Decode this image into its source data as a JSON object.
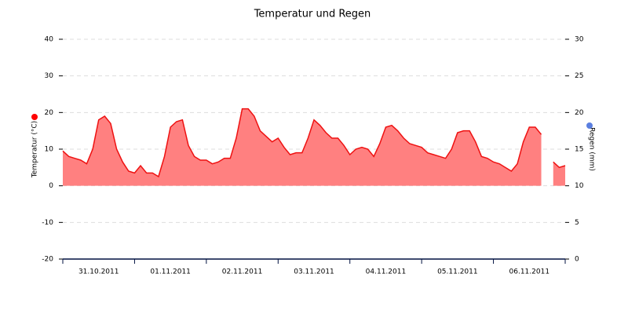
{
  "chart_data": {
    "type": "area",
    "title": "Temperatur und Regen",
    "ylabel": "Temperatur (°C)",
    "ylabel_color": "#ff0000",
    "y2label": "Regen (mm)",
    "y2label_color": "#5b7fe0",
    "categories": [
      null,
      null,
      null,
      null,
      null,
      null,
      "31.10.2011",
      null,
      null,
      null,
      null,
      null,
      null,
      null,
      null,
      null,
      null,
      null,
      "01.11.2011",
      null,
      null,
      null,
      null,
      null,
      null,
      null,
      null,
      null,
      null,
      null,
      "02.11.2011",
      null,
      null,
      null,
      null,
      null,
      null,
      null,
      null,
      null,
      null,
      null,
      "03.11.2011",
      null,
      null,
      null,
      null,
      null,
      null,
      null,
      null,
      null,
      null,
      null,
      "04.11.2011",
      null,
      null,
      null,
      null,
      null,
      null,
      null,
      null,
      null,
      null,
      null,
      "05.11.2011",
      null,
      null,
      null,
      null,
      null,
      null,
      null,
      null,
      null,
      null,
      null,
      "06.11.2011",
      null,
      null,
      null,
      null,
      null,
      null
    ],
    "series": [
      {
        "name": "Temperatur",
        "color": "#ee1111",
        "fill": "#ff8080",
        "values": [
          9.5,
          8,
          7.5,
          7,
          6,
          10,
          18,
          19,
          17,
          10,
          6.5,
          4,
          3.5,
          5.5,
          3.5,
          3.5,
          2.5,
          8,
          16,
          17.5,
          18,
          11,
          8,
          7,
          7,
          6,
          6.5,
          7.5,
          7.5,
          13,
          21,
          21,
          19,
          15,
          13.5,
          12,
          13,
          10.5,
          8.5,
          9,
          9,
          13,
          18,
          16.5,
          14.5,
          13,
          13,
          11,
          8.5,
          10,
          10.5,
          10,
          8,
          11.5,
          16,
          16.5,
          15,
          13,
          11.5,
          11,
          10.5,
          9,
          8.5,
          8,
          7.5,
          10,
          14.5,
          15,
          15,
          12,
          8,
          7.5,
          6.5,
          6,
          5,
          4,
          6,
          12,
          16,
          16,
          14,
          null,
          6.5,
          5,
          5.5
        ]
      }
    ],
    "ylim": [
      -20,
      40
    ],
    "yticks": [
      -20,
      -10,
      0,
      10,
      20,
      30,
      40
    ],
    "y2lim": [
      0,
      30
    ],
    "y2ticks": [
      0,
      5,
      10,
      15,
      20,
      25,
      30
    ],
    "grid": true
  }
}
